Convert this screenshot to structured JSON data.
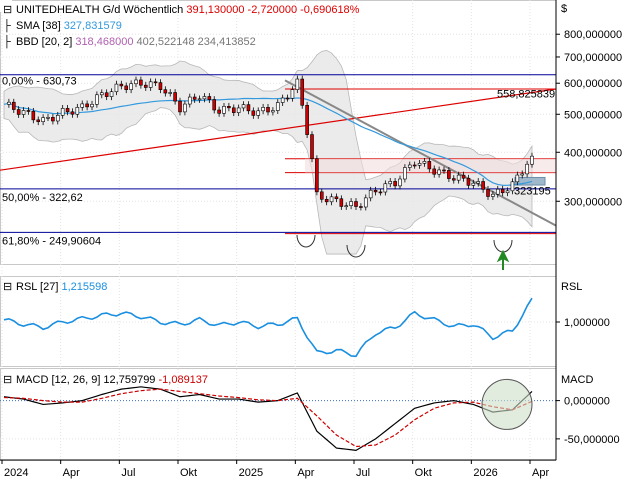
{
  "currency_symbol": "$",
  "price_panel": {
    "title": "UNITEDHEALTH G/d",
    "frequency": "Wöchentlich",
    "last": "391,130000",
    "change": "-2,720000",
    "change_pct": "-0,690618%",
    "sma_label": "SMA [38]",
    "sma_value": "327,831579",
    "bbd_label": "BBD [20, 2]",
    "bbd_mid": "318,468000",
    "bbd_upper": "402,522148",
    "bbd_lower": "234,413852",
    "fib_0_label": "0,00% - 630,73",
    "fib_50_label": "50,00% - 322,62",
    "fib_618_label": "61,80% - 249,90604",
    "trend_label_1": "558,825839",
    "trend_label_2": "323195",
    "y_ticks": [
      {
        "value": 800,
        "label": "800,000000"
      },
      {
        "value": 700,
        "label": "700,000000"
      },
      {
        "value": 600,
        "label": "600,000000"
      },
      {
        "value": 500,
        "label": "500,000000"
      },
      {
        "value": 400,
        "label": "400,000000"
      },
      {
        "value": 300,
        "label": "300,000000"
      }
    ]
  },
  "rsl_panel": {
    "label": "RSL [27]",
    "value": "1,215598",
    "axis_label": "RSL",
    "y_ticks": [
      {
        "value": 1.0,
        "label": "1,000000"
      }
    ]
  },
  "macd_panel": {
    "label": "MACD [12, 26, 9]",
    "value1": "12,759799",
    "value2": "-1,089137",
    "axis_label": "MACD",
    "y_ticks": [
      {
        "value": 0,
        "label": "0,000000"
      },
      {
        "value": -50,
        "label": "-50,000000"
      }
    ]
  },
  "x_axis": {
    "labels": [
      "2024",
      "Apr",
      "Jul",
      "Okt",
      "2025",
      "Apr",
      "Jul",
      "Okt",
      "2026",
      "Apr"
    ]
  },
  "colors": {
    "candle_up": "#ffffff",
    "candle_down": "#cc0000",
    "sma": "#3399dd",
    "bbd_fill": "#e6e6e6",
    "fib_line": "#000099",
    "trend_red": "#dd0000",
    "trend_gray": "#888888",
    "rsl_line": "#1a8fe0",
    "macd_line": "#000000",
    "signal_line": "#cc0000",
    "arrow": "#228822"
  },
  "chart_data": [
    {
      "type": "candlestick",
      "title": "UNITEDHEALTH G/d",
      "x": [
        "2024-01",
        "2024-02",
        "2024-03",
        "2024-04",
        "2024-05",
        "2024-06",
        "2024-07",
        "2024-08",
        "2024-09",
        "2024-10",
        "2024-11",
        "2024-12",
        "2025-01",
        "2025-02",
        "2025-03",
        "2025-04",
        "2025-05",
        "2025-06",
        "2025-07",
        "2025-08",
        "2025-09",
        "2025-10",
        "2025-11",
        "2025-12",
        "2026-01",
        "2026-02",
        "2026-03",
        "2026-04"
      ],
      "close": [
        530,
        505,
        480,
        505,
        520,
        560,
        590,
        600,
        590,
        520,
        560,
        510,
        520,
        505,
        525,
        600,
        310,
        300,
        290,
        320,
        335,
        380,
        360,
        345,
        335,
        310,
        330,
        391
      ],
      "ylim": [
        215,
        880
      ],
      "y_scale": "log"
    },
    {
      "type": "line",
      "title": "RSL [27]",
      "series": [
        {
          "name": "RSL [27]",
          "values": [
            1.02,
            0.98,
            0.95,
            1.0,
            1.03,
            1.06,
            1.08,
            1.05,
            1.0,
            0.98,
            1.02,
            0.97,
            1.0,
            0.96,
            0.98,
            1.03,
            0.72,
            0.74,
            0.7,
            0.9,
            0.95,
            1.08,
            1.02,
            0.96,
            0.98,
            0.86,
            0.92,
            1.2
          ]
        }
      ],
      "ylim": [
        0.6,
        1.4
      ]
    },
    {
      "type": "line",
      "title": "MACD [12, 26, 9]",
      "series": [
        {
          "name": "MACD",
          "values": [
            5,
            2,
            -5,
            -3,
            0,
            8,
            15,
            18,
            15,
            5,
            8,
            2,
            2,
            -2,
            0,
            10,
            -40,
            -62,
            -65,
            -50,
            -30,
            -10,
            -3,
            0,
            -5,
            -15,
            -12,
            12
          ]
        },
        {
          "name": "Signal",
          "values": [
            4,
            3,
            0,
            -2,
            -2,
            3,
            9,
            13,
            15,
            12,
            9,
            6,
            4,
            1,
            0,
            3,
            -20,
            -45,
            -60,
            -58,
            -45,
            -25,
            -10,
            -3,
            -2,
            -8,
            -12,
            -1
          ]
        }
      ],
      "ylim": [
        -75,
        40
      ]
    }
  ]
}
